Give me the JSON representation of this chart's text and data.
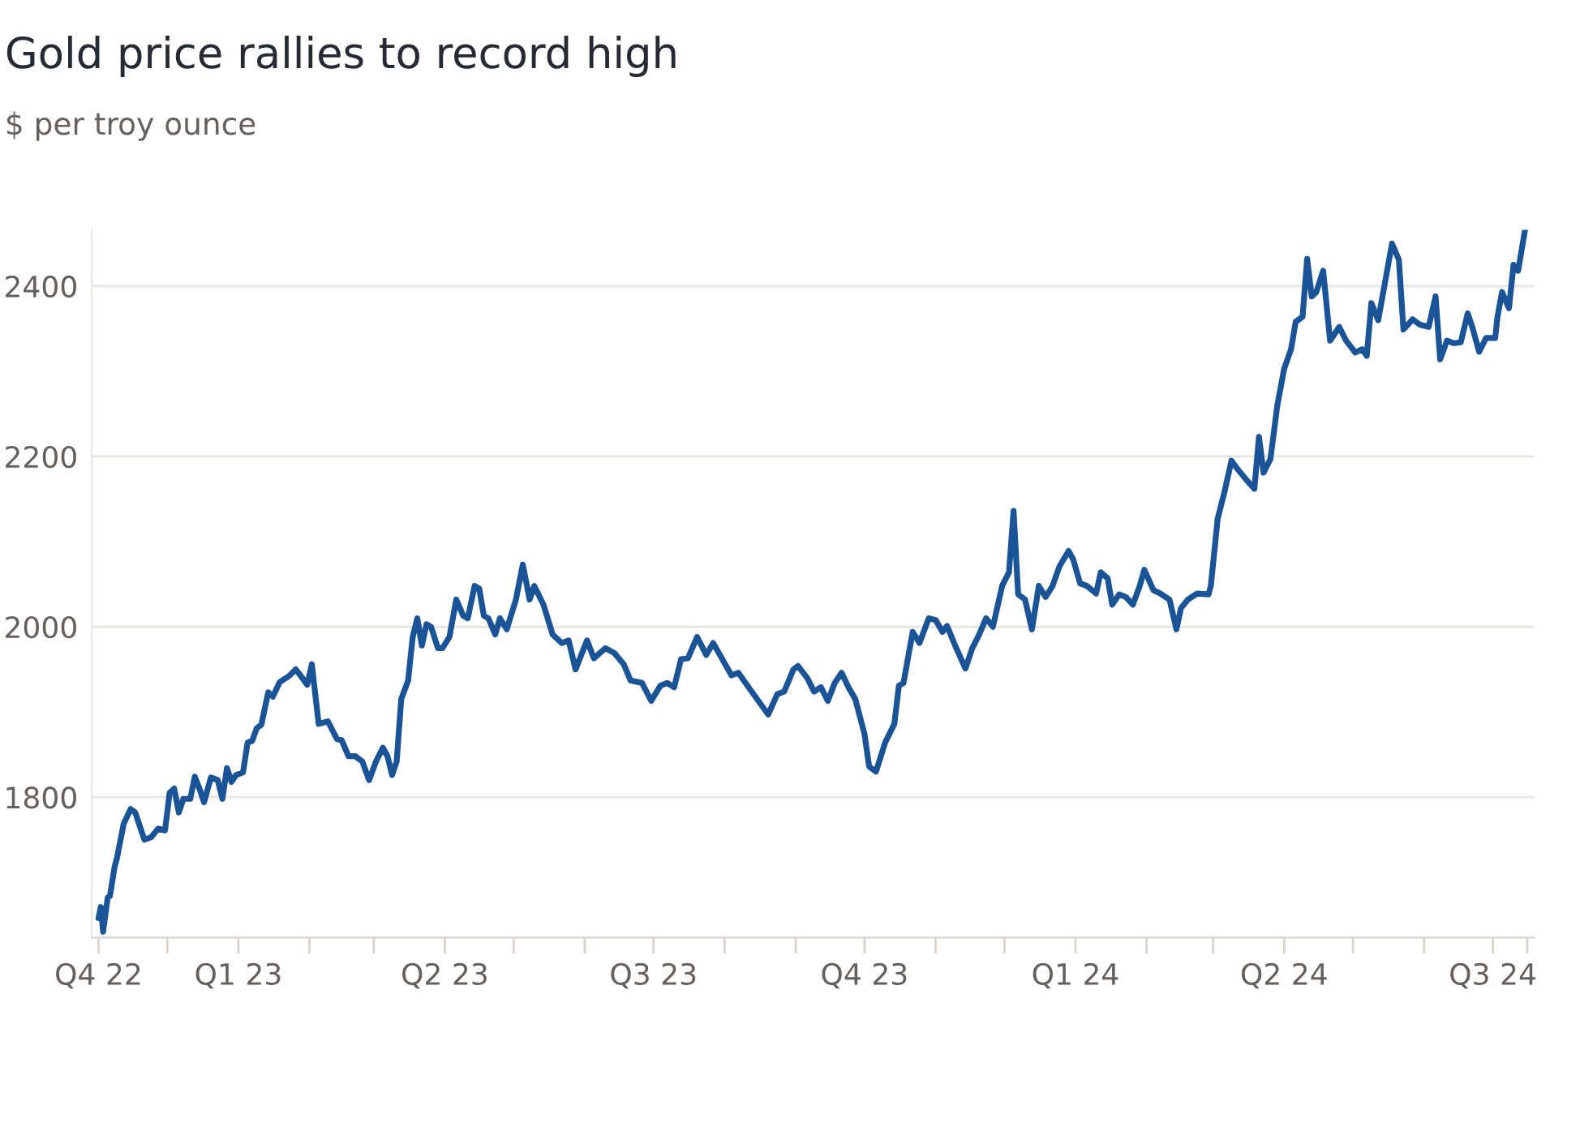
{
  "chart_data": {
    "type": "line",
    "title": "Gold price rallies to record high",
    "subtitle": "$ per troy ounce",
    "x": [
      "2022-11-01",
      "2022-11-02",
      "2022-11-03",
      "2022-11-05",
      "2022-11-06",
      "2022-11-08",
      "2022-11-09",
      "2022-11-12",
      "2022-11-15",
      "2022-11-17",
      "2022-11-21",
      "2022-11-24",
      "2022-11-27",
      "2022-11-30",
      "2022-12-02",
      "2022-12-04",
      "2022-12-06",
      "2022-12-08",
      "2022-12-11",
      "2022-12-13",
      "2022-12-15",
      "2022-12-17",
      "2022-12-20",
      "2022-12-23",
      "2022-12-25",
      "2022-12-27",
      "2022-12-29",
      "2022-12-31",
      "2023-01-03",
      "2023-01-05",
      "2023-01-07",
      "2023-01-09",
      "2023-01-11",
      "2023-01-14",
      "2023-01-16",
      "2023-01-19",
      "2023-01-23",
      "2023-01-26",
      "2023-01-28",
      "2023-01-31",
      "2023-02-02",
      "2023-02-05",
      "2023-02-09",
      "2023-02-13",
      "2023-02-15",
      "2023-02-18",
      "2023-02-21",
      "2023-02-24",
      "2023-02-27",
      "2023-03-02",
      "2023-03-05",
      "2023-03-07",
      "2023-03-09",
      "2023-03-11",
      "2023-03-13",
      "2023-03-16",
      "2023-03-18",
      "2023-03-20",
      "2023-03-22",
      "2023-03-24",
      "2023-03-26",
      "2023-03-29",
      "2023-03-31",
      "2023-04-03",
      "2023-04-06",
      "2023-04-09",
      "2023-04-11",
      "2023-04-14",
      "2023-04-16",
      "2023-04-18",
      "2023-04-20",
      "2023-04-23",
      "2023-04-25",
      "2023-04-28",
      "2023-05-02",
      "2023-05-05",
      "2023-05-08",
      "2023-05-10",
      "2023-05-14",
      "2023-05-18",
      "2023-05-22",
      "2023-05-25",
      "2023-05-28",
      "2023-06-02",
      "2023-06-05",
      "2023-06-10",
      "2023-06-14",
      "2023-06-18",
      "2023-06-21",
      "2023-06-26",
      "2023-06-30",
      "2023-07-04",
      "2023-07-07",
      "2023-07-10",
      "2023-07-13",
      "2023-07-16",
      "2023-07-20",
      "2023-07-24",
      "2023-07-27",
      "2023-07-31",
      "2023-08-04",
      "2023-08-07",
      "2023-08-12",
      "2023-08-16",
      "2023-08-20",
      "2023-08-24",
      "2023-08-27",
      "2023-08-31",
      "2023-09-02",
      "2023-09-06",
      "2023-09-09",
      "2023-09-12",
      "2023-09-15",
      "2023-09-18",
      "2023-09-21",
      "2023-09-24",
      "2023-09-27",
      "2023-10-01",
      "2023-10-03",
      "2023-10-06",
      "2023-10-10",
      "2023-10-14",
      "2023-10-16",
      "2023-10-18",
      "2023-10-22",
      "2023-10-25",
      "2023-10-29",
      "2023-11-01",
      "2023-11-04",
      "2023-11-06",
      "2023-11-10",
      "2023-11-14",
      "2023-11-17",
      "2023-11-20",
      "2023-11-23",
      "2023-11-26",
      "2023-11-30",
      "2023-12-03",
      "2023-12-05",
      "2023-12-07",
      "2023-12-10",
      "2023-12-13",
      "2023-12-16",
      "2023-12-19",
      "2023-12-22",
      "2023-12-25",
      "2023-12-29",
      "2023-12-31",
      "2024-01-03",
      "2024-01-06",
      "2024-01-10",
      "2024-01-12",
      "2024-01-15",
      "2024-01-17",
      "2024-01-20",
      "2024-01-23",
      "2024-01-26",
      "2024-01-29",
      "2024-01-31",
      "2024-02-04",
      "2024-02-07",
      "2024-02-11",
      "2024-02-14",
      "2024-02-16",
      "2024-02-19",
      "2024-02-23",
      "2024-02-28",
      "2024-02-29",
      "2024-03-03",
      "2024-03-06",
      "2024-03-09",
      "2024-03-12",
      "2024-03-16",
      "2024-03-19",
      "2024-03-21",
      "2024-03-23",
      "2024-03-26",
      "2024-03-29",
      "2024-04-01",
      "2024-04-04",
      "2024-04-06",
      "2024-04-09",
      "2024-04-11",
      "2024-04-13",
      "2024-04-15",
      "2024-04-18",
      "2024-04-21",
      "2024-04-25",
      "2024-04-28",
      "2024-05-02",
      "2024-05-05",
      "2024-05-07",
      "2024-05-09",
      "2024-05-12",
      "2024-05-14",
      "2024-05-18",
      "2024-05-21",
      "2024-05-23",
      "2024-05-27",
      "2024-05-30",
      "2024-06-03",
      "2024-06-06",
      "2024-06-08",
      "2024-06-11",
      "2024-06-14",
      "2024-06-17",
      "2024-06-20",
      "2024-06-22",
      "2024-06-25",
      "2024-06-28",
      "2024-07-02",
      "2024-07-03",
      "2024-07-05",
      "2024-07-08",
      "2024-07-10",
      "2024-07-12",
      "2024-07-15"
    ],
    "series": [
      {
        "color": "#1b5397",
        "values": [
          1658,
          1671,
          1642,
          1682,
          1684,
          1718,
          1728,
          1769,
          1786,
          1782,
          1750,
          1753,
          1763,
          1761,
          1805,
          1810,
          1782,
          1798,
          1798,
          1824,
          1810,
          1794,
          1823,
          1820,
          1798,
          1834,
          1818,
          1826,
          1829,
          1864,
          1866,
          1881,
          1885,
          1923,
          1918,
          1935,
          1942,
          1950,
          1943,
          1932,
          1956,
          1886,
          1889,
          1868,
          1867,
          1848,
          1848,
          1842,
          1820,
          1842,
          1858,
          1848,
          1826,
          1842,
          1915,
          1937,
          1988,
          2010,
          1978,
          2003,
          2000,
          1975,
          1975,
          1988,
          2032,
          2013,
          2010,
          2048,
          2045,
          2013,
          2010,
          1991,
          2010,
          1997,
          2032,
          2073,
          2032,
          2048,
          2026,
          1991,
          1981,
          1984,
          1950,
          1984,
          1963,
          1975,
          1969,
          1956,
          1937,
          1934,
          1913,
          1931,
          1934,
          1929,
          1962,
          1963,
          1988,
          1967,
          1981,
          1962,
          1943,
          1946,
          1927,
          1912,
          1897,
          1921,
          1924,
          1950,
          1954,
          1940,
          1924,
          1929,
          1913,
          1934,
          1946,
          1929,
          1915,
          1874,
          1836,
          1830,
          1864,
          1886,
          1931,
          1934,
          1994,
          1981,
          2010,
          2008,
          1994,
          2001,
          1975,
          1951,
          1975,
          1991,
          2010,
          2000,
          2048,
          2064,
          2136,
          2038,
          2032,
          1997,
          2048,
          2035,
          2048,
          2071,
          2089,
          2079,
          2051,
          2048,
          2039,
          2064,
          2057,
          2026,
          2038,
          2035,
          2026,
          2048,
          2067,
          2043,
          2039,
          2032,
          1997,
          2022,
          2032,
          2039,
          2038,
          2048,
          2127,
          2159,
          2195,
          2184,
          2171,
          2162,
          2223,
          2181,
          2197,
          2260,
          2303,
          2326,
          2358,
          2364,
          2432,
          2388,
          2393,
          2418,
          2336,
          2352,
          2336,
          2322,
          2326,
          2318,
          2380,
          2360,
          2390,
          2450,
          2431,
          2349,
          2361,
          2355,
          2352,
          2388,
          2314,
          2336,
          2333,
          2334,
          2368,
          2352,
          2323,
          2339,
          2339,
          2364,
          2393,
          2374,
          2425,
          2418,
          2466
        ]
      }
    ],
    "xlim": [
      "2022-10-29",
      "2024-07-19"
    ],
    "xticks": [
      {
        "value": "2022-11-01",
        "label": "Q4 22"
      },
      {
        "value": "2022-12-01",
        "label": null
      },
      {
        "value": "2023-01-01",
        "label": "Q1 23"
      },
      {
        "value": "2023-02-01",
        "label": null
      },
      {
        "value": "2023-03-01",
        "label": null
      },
      {
        "value": "2023-04-01",
        "label": "Q2 23"
      },
      {
        "value": "2023-05-01",
        "label": null
      },
      {
        "value": "2023-06-01",
        "label": null
      },
      {
        "value": "2023-07-01",
        "label": "Q3 23"
      },
      {
        "value": "2023-08-01",
        "label": null
      },
      {
        "value": "2023-09-01",
        "label": null
      },
      {
        "value": "2023-10-01",
        "label": "Q4 23"
      },
      {
        "value": "2023-11-01",
        "label": null
      },
      {
        "value": "2023-12-01",
        "label": null
      },
      {
        "value": "2024-01-01",
        "label": "Q1 24"
      },
      {
        "value": "2024-02-01",
        "label": null
      },
      {
        "value": "2024-03-01",
        "label": null
      },
      {
        "value": "2024-04-01",
        "label": "Q2 24"
      },
      {
        "value": "2024-05-01",
        "label": null
      },
      {
        "value": "2024-06-01",
        "label": null
      },
      {
        "value": "2024-07-01",
        "label": "Q3 24"
      },
      {
        "value": "2024-07-16",
        "label": null
      }
    ],
    "ylim": [
      1635,
      2466
    ],
    "yticks": [
      1800,
      2000,
      2200,
      2400
    ],
    "grid": "y",
    "legend": false,
    "line_style": "solid",
    "marker": "none"
  }
}
